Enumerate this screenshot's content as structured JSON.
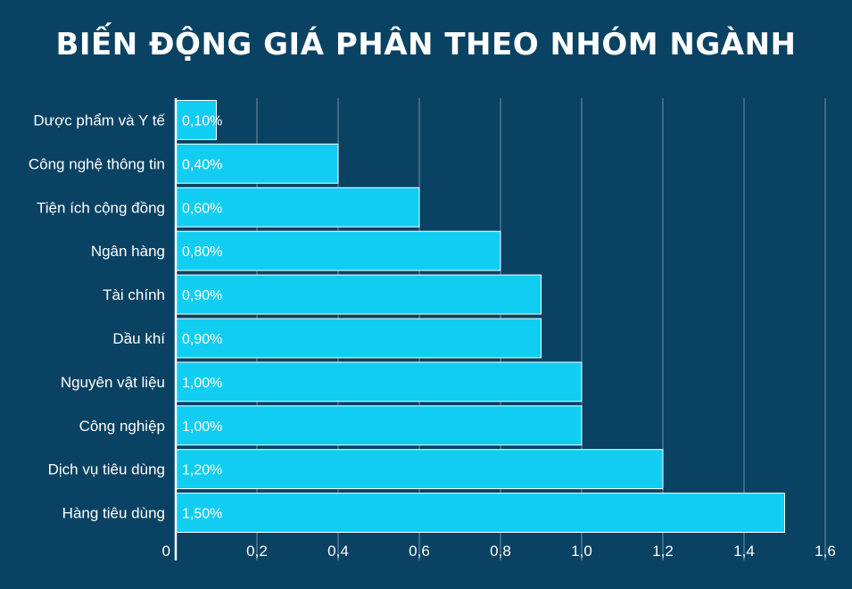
{
  "chart_data": {
    "type": "bar",
    "orientation": "horizontal",
    "title": "BIẾN ĐỘNG GIÁ PHÂN THEO NHÓM NGÀNH",
    "categories": [
      "Dược phẩm và Y tế",
      "Công nghệ thông tin",
      "Tiện ích cộng đồng",
      "Ngân hàng",
      "Tài chính",
      "Dầu khí",
      "Nguyên vật liệu",
      "Công nghiệp",
      "Dịch vụ tiêu dùng",
      "Hàng tiêu dùng"
    ],
    "values": [
      0.1,
      0.4,
      0.6,
      0.8,
      0.9,
      0.9,
      1.0,
      1.0,
      1.2,
      1.5
    ],
    "data_labels": [
      "0,10%",
      "0,40%",
      "0,60%",
      "0,80%",
      "0,90%",
      "0,90%",
      "1,00%",
      "1,00%",
      "1,20%",
      "1,50%"
    ],
    "x_ticks": [
      0,
      0.2,
      0.4,
      0.6,
      0.8,
      1.0,
      1.2,
      1.4,
      1.6
    ],
    "x_tick_labels": [
      "0",
      "0,2",
      "0,4",
      "0,6",
      "0,8",
      "1,0",
      "1,2",
      "1,4",
      "1,6"
    ],
    "xlim": [
      0,
      1.6
    ],
    "grid": true,
    "colors": {
      "background": "#0a4263",
      "bar": "#12cdf2",
      "bar_border": "#ffffff",
      "grid": "#6f92a8",
      "axis": "#ffffff",
      "text": "#ffffff"
    }
  }
}
